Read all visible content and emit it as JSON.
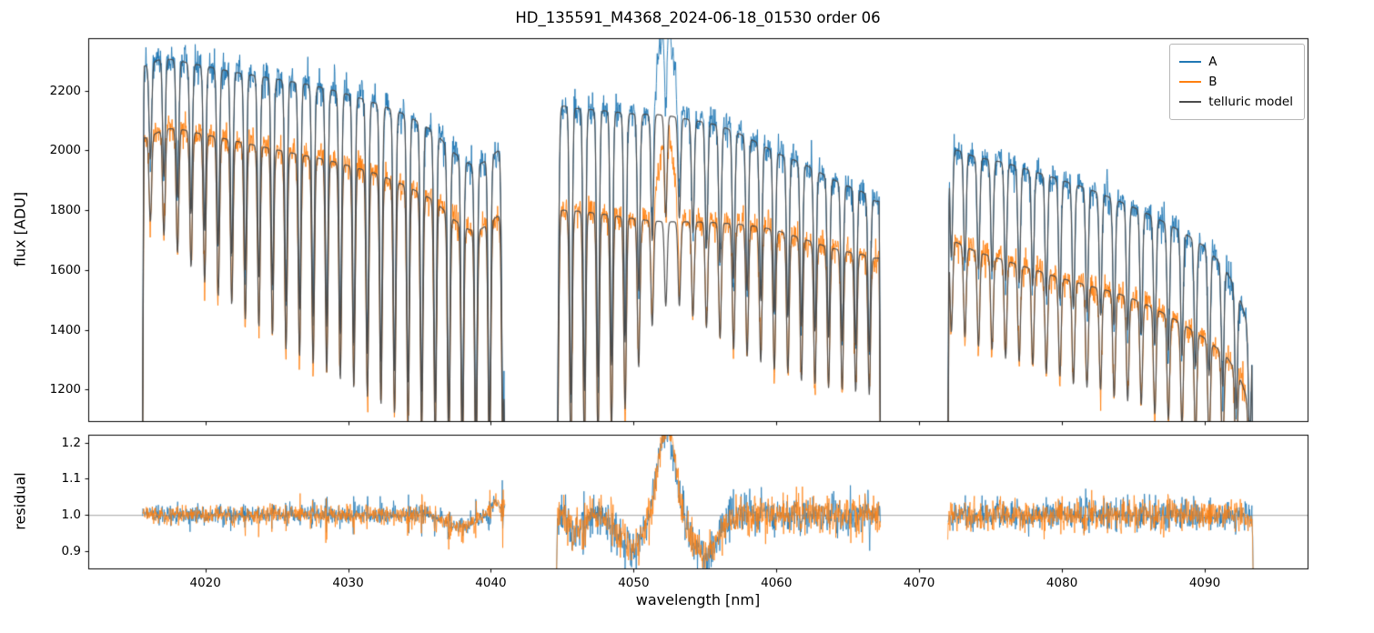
{
  "chart_data": {
    "type": "line",
    "title": "HD_135591_M4368_2024-06-18_01530  order 06",
    "xlabel": "wavelength [nm]",
    "xlim": [
      4011.8,
      4097.2
    ],
    "xticks": [
      4020,
      4030,
      4040,
      4050,
      4060,
      4070,
      4080,
      4090
    ],
    "panels": [
      {
        "name": "flux",
        "ylabel": "flux [ADU]",
        "ylim": [
          1095,
          2375
        ],
        "yticks": [
          1200,
          1400,
          1600,
          1800,
          2000,
          2200
        ],
        "ytick_labels": [
          "1200",
          "1400",
          "1600",
          "1800",
          "2000",
          "2200"
        ]
      },
      {
        "name": "residual",
        "ylabel": "residual",
        "ylim": [
          0.852,
          1.222
        ],
        "yticks": [
          0.9,
          1.0,
          1.1,
          1.2
        ],
        "ytick_labels": [
          "0.9",
          "1.0",
          "1.1",
          "1.2"
        ],
        "hline": 1.0
      }
    ],
    "legend": [
      {
        "label": "A",
        "color": "#1f77b4"
      },
      {
        "label": "B",
        "color": "#ff7f0e"
      },
      {
        "label": "telluric model",
        "color": "#4a4a4a"
      }
    ],
    "segments": [
      [
        4015.6,
        4041.0
      ],
      [
        4044.6,
        4067.3
      ],
      [
        4072.0,
        4093.4
      ]
    ],
    "continuum_A": [
      [
        4015.6,
        2280
      ],
      [
        4017,
        2305
      ],
      [
        4019,
        2290
      ],
      [
        4022,
        2262
      ],
      [
        4025,
        2238
      ],
      [
        4028,
        2212
      ],
      [
        4031,
        2172
      ],
      [
        4034,
        2120
      ],
      [
        4036,
        2062
      ],
      [
        4037.6,
        1985
      ],
      [
        4039,
        1952
      ],
      [
        4040.6,
        2002
      ],
      [
        4042.8,
        2060
      ],
      [
        4044.7,
        2142
      ],
      [
        4046,
        2140
      ],
      [
        4048,
        2132
      ],
      [
        4050,
        2122
      ],
      [
        4052,
        2118
      ],
      [
        4054,
        2102
      ],
      [
        4056,
        2082
      ],
      [
        4058,
        2042
      ],
      [
        4060,
        1992
      ],
      [
        4062,
        1952
      ],
      [
        4064,
        1902
      ],
      [
        4066,
        1862
      ],
      [
        4067.3,
        1832
      ],
      [
        4069,
        1930
      ],
      [
        4072.1,
        2000
      ],
      [
        4074,
        1978
      ],
      [
        4076,
        1958
      ],
      [
        4078,
        1930
      ],
      [
        4080,
        1900
      ],
      [
        4082,
        1868
      ],
      [
        4084,
        1830
      ],
      [
        4086,
        1788
      ],
      [
        4088,
        1738
      ],
      [
        4090,
        1678
      ],
      [
        4091.5,
        1598
      ],
      [
        4092.5,
        1498
      ],
      [
        4093.4,
        1360
      ]
    ],
    "continuum_B": [
      [
        4015.6,
        2040
      ],
      [
        4017.5,
        2072
      ],
      [
        4020,
        2052
      ],
      [
        4023,
        2022
      ],
      [
        4026,
        1992
      ],
      [
        4029,
        1962
      ],
      [
        4032,
        1922
      ],
      [
        4034,
        1882
      ],
      [
        4036,
        1832
      ],
      [
        4037.6,
        1762
      ],
      [
        4039,
        1732
      ],
      [
        4040.6,
        1782
      ],
      [
        4042.8,
        1790
      ],
      [
        4044.7,
        1800
      ],
      [
        4047,
        1792
      ],
      [
        4050,
        1772
      ],
      [
        4052,
        1762
      ],
      [
        4055,
        1760
      ],
      [
        4058,
        1750
      ],
      [
        4060,
        1732
      ],
      [
        4062,
        1702
      ],
      [
        4064,
        1672
      ],
      [
        4066,
        1652
      ],
      [
        4067.3,
        1642
      ],
      [
        4069,
        1700
      ],
      [
        4072.1,
        1700
      ],
      [
        4074,
        1662
      ],
      [
        4076,
        1632
      ],
      [
        4078,
        1602
      ],
      [
        4080,
        1572
      ],
      [
        4082,
        1546
      ],
      [
        4084,
        1520
      ],
      [
        4086,
        1482
      ],
      [
        4088,
        1432
      ],
      [
        4090,
        1372
      ],
      [
        4091.5,
        1312
      ],
      [
        4092.5,
        1232
      ],
      [
        4093.4,
        1120
      ]
    ],
    "telluric_lines": [
      [
        4016.15,
        0.14
      ],
      [
        4017.1,
        0.17
      ],
      [
        4018.05,
        0.2
      ],
      [
        4019.0,
        0.22
      ],
      [
        4019.95,
        0.24
      ],
      [
        4020.9,
        0.26
      ],
      [
        4021.85,
        0.27
      ],
      [
        4022.8,
        0.29
      ],
      [
        4023.75,
        0.3
      ],
      [
        4024.7,
        0.31
      ],
      [
        4025.65,
        0.33
      ],
      [
        4026.6,
        0.34
      ],
      [
        4027.55,
        0.35
      ],
      [
        4028.5,
        0.36
      ],
      [
        4029.45,
        0.37
      ],
      [
        4030.4,
        0.38
      ],
      [
        4031.35,
        0.39
      ],
      [
        4032.3,
        0.4
      ],
      [
        4033.25,
        0.41
      ],
      [
        4034.2,
        0.42
      ],
      [
        4035.15,
        0.43
      ],
      [
        4036.1,
        0.44
      ],
      [
        4037.05,
        0.45
      ],
      [
        4038.0,
        0.46
      ],
      [
        4038.95,
        0.47
      ],
      [
        4039.9,
        0.47
      ],
      [
        4040.85,
        0.47
      ],
      [
        4044.65,
        0.46
      ],
      [
        4045.6,
        0.45
      ],
      [
        4046.55,
        0.44
      ],
      [
        4047.5,
        0.42
      ],
      [
        4048.45,
        0.4
      ],
      [
        4049.4,
        0.36
      ],
      [
        4050.35,
        0.28
      ],
      [
        4051.3,
        0.2
      ],
      [
        4052.25,
        0.16
      ],
      [
        4053.2,
        0.16
      ],
      [
        4054.15,
        0.18
      ],
      [
        4055.1,
        0.2
      ],
      [
        4056.05,
        0.22
      ],
      [
        4057.0,
        0.24
      ],
      [
        4057.95,
        0.25
      ],
      [
        4058.9,
        0.26
      ],
      [
        4059.85,
        0.27
      ],
      [
        4060.8,
        0.27
      ],
      [
        4061.75,
        0.28
      ],
      [
        4062.7,
        0.28
      ],
      [
        4063.65,
        0.28
      ],
      [
        4064.6,
        0.28
      ],
      [
        4065.55,
        0.28
      ],
      [
        4066.5,
        0.28
      ],
      [
        4072.25,
        0.18
      ],
      [
        4073.2,
        0.18
      ],
      [
        4074.15,
        0.19
      ],
      [
        4075.1,
        0.19
      ],
      [
        4076.05,
        0.2
      ],
      [
        4077.0,
        0.2
      ],
      [
        4077.95,
        0.2
      ],
      [
        4078.9,
        0.21
      ],
      [
        4079.85,
        0.21
      ],
      [
        4080.8,
        0.22
      ],
      [
        4081.75,
        0.22
      ],
      [
        4082.7,
        0.22
      ],
      [
        4083.65,
        0.23
      ],
      [
        4084.6,
        0.23
      ],
      [
        4085.55,
        0.23
      ],
      [
        4086.5,
        0.24
      ],
      [
        4087.45,
        0.24
      ],
      [
        4088.4,
        0.24
      ],
      [
        4089.35,
        0.25
      ],
      [
        4090.3,
        0.25
      ],
      [
        4091.25,
        0.25
      ],
      [
        4092.2,
        0.26
      ],
      [
        4093.15,
        0.26
      ]
    ],
    "line_sigma_nm": 0.09,
    "emission": {
      "center": 4052.3,
      "sigma": 0.5,
      "amp_A": 330,
      "amp_B": 300
    },
    "residual_features": [
      [
        4037.8,
        -0.035,
        0.9
      ],
      [
        4040.4,
        0.035,
        0.3
      ],
      [
        4046.0,
        -0.04,
        0.5
      ],
      [
        4049.8,
        -0.095,
        0.85
      ],
      [
        4052.3,
        0.25,
        0.6
      ],
      [
        4055.0,
        -0.115,
        0.85
      ]
    ],
    "residual_edges": [
      [
        0,
        0.04
      ],
      [
        -0.14,
        -0.05
      ],
      [
        -0.03,
        -0.16
      ]
    ],
    "noise": {
      "flux_base_A": 28,
      "flux_base_B": 24,
      "flux_core_boost": 60,
      "residual_base": [
        0.012,
        0.026,
        0.021
      ],
      "residual_core_boost": 0.2,
      "seeds": {
        "A": 20240618,
        "B": 135591,
        "rA": 4368,
        "rB": 1530
      }
    },
    "sample_step_nm": 0.03
  }
}
